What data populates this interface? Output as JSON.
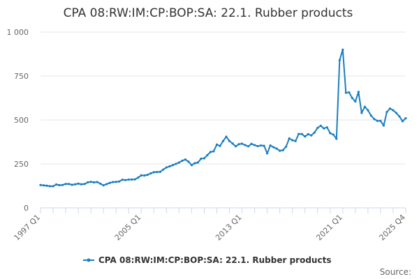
{
  "chart_data": {
    "type": "line",
    "title": "CPA 08:RW:IM:CP:BOP:SA: 22.1. Rubber products",
    "xlabel": "",
    "ylabel": "",
    "x_range": [
      "1997 Q1",
      "2025 Q4"
    ],
    "x_tick_labels": [
      "1997 Q1",
      "2005 Q1",
      "2013 Q1",
      "2021 Q1",
      "2025 Q4"
    ],
    "y_ticks": [
      "0",
      "250",
      "500",
      "750",
      "1 000"
    ],
    "ylim": [
      0,
      1000
    ],
    "grid": true,
    "legend_position": "bottom",
    "series": [
      {
        "name": "CPA 08:RW:IM:CP:BOP:SA: 22.1. Rubber products",
        "color": "#1a7ec0",
        "values": [
          130,
          128,
          126,
          123,
          123,
          133,
          129,
          130,
          136,
          136,
          131,
          134,
          138,
          134,
          136,
          145,
          148,
          145,
          147,
          138,
          128,
          135,
          142,
          147,
          148,
          150,
          160,
          158,
          161,
          161,
          162,
          172,
          185,
          184,
          188,
          196,
          203,
          204,
          205,
          218,
          230,
          236,
          243,
          250,
          258,
          268,
          275,
          263,
          243,
          254,
          258,
          280,
          282,
          300,
          318,
          322,
          360,
          352,
          380,
          405,
          380,
          366,
          350,
          362,
          365,
          357,
          350,
          364,
          357,
          351,
          355,
          353,
          310,
          355,
          345,
          337,
          325,
          328,
          348,
          395,
          385,
          380,
          420,
          420,
          406,
          419,
          412,
          428,
          455,
          467,
          452,
          458,
          425,
          417,
          393,
          840,
          900,
          655,
          657,
          625,
          605,
          660,
          540,
          575,
          555,
          525,
          505,
          495,
          495,
          468,
          545,
          565,
          555,
          540,
          520,
          493,
          510
        ]
      }
    ],
    "source_label": "Source:"
  }
}
